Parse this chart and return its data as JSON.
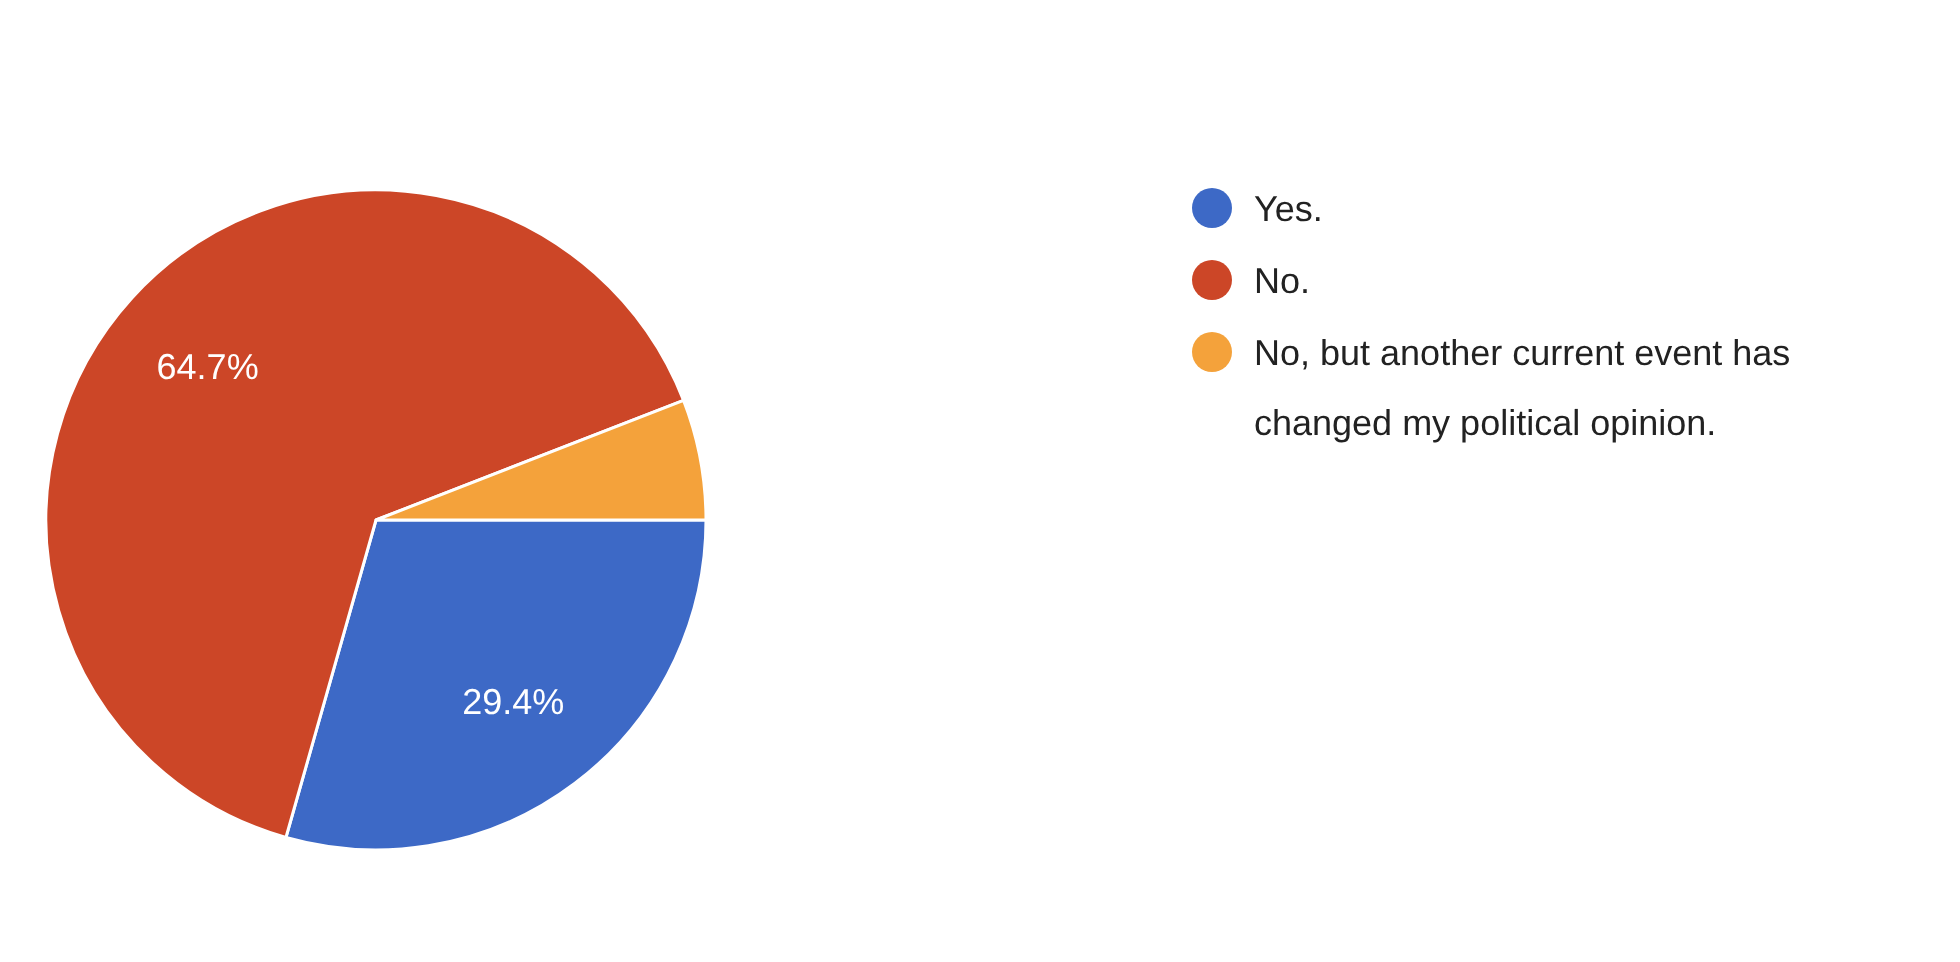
{
  "chart_data": {
    "type": "pie",
    "categories": [
      "Yes.",
      "No.",
      "No, but another current event has changed my political opinion."
    ],
    "values": [
      29.4,
      64.7,
      5.9
    ],
    "colors": [
      "#3d69c6",
      "#cc4627",
      "#f4a23b"
    ],
    "value_labels": [
      "29.4%",
      "64.7%",
      null
    ],
    "legend": "right"
  }
}
